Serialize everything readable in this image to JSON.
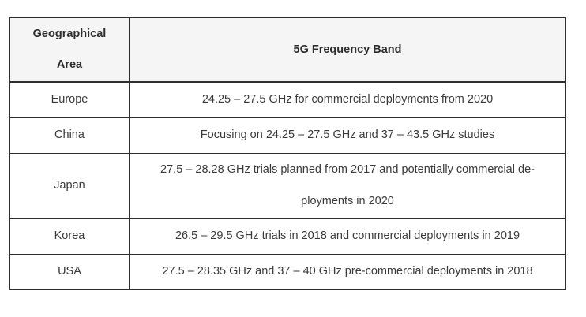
{
  "table": {
    "columns": [
      {
        "label": "Geographical\nArea"
      },
      {
        "label": "5G Frequency Band"
      }
    ],
    "rows": [
      {
        "area": "Europe",
        "band": "24.25 – 27.5 GHz for commercial deployments from 2020"
      },
      {
        "area": "China",
        "band": "Focusing on 24.25 – 27.5 GHz and 37 – 43.5 GHz studies"
      },
      {
        "area": "Japan",
        "band": "27.5 – 28.28 GHz trials planned from 2017 and potentially commercial de-\nployments in 2020"
      },
      {
        "area": "Korea",
        "band": "26.5 – 29.5 GHz trials in 2018 and commercial deployments in 2019"
      },
      {
        "area": "USA",
        "band": "27.5 – 28.35 GHz and 37 – 40 GHz pre-commercial deployments in 2018"
      }
    ],
    "colors": {
      "header_background": "#f5f5f5",
      "border": "#2e2e2e",
      "text": "#3a3a3a",
      "page_background": "#ffffff"
    }
  }
}
